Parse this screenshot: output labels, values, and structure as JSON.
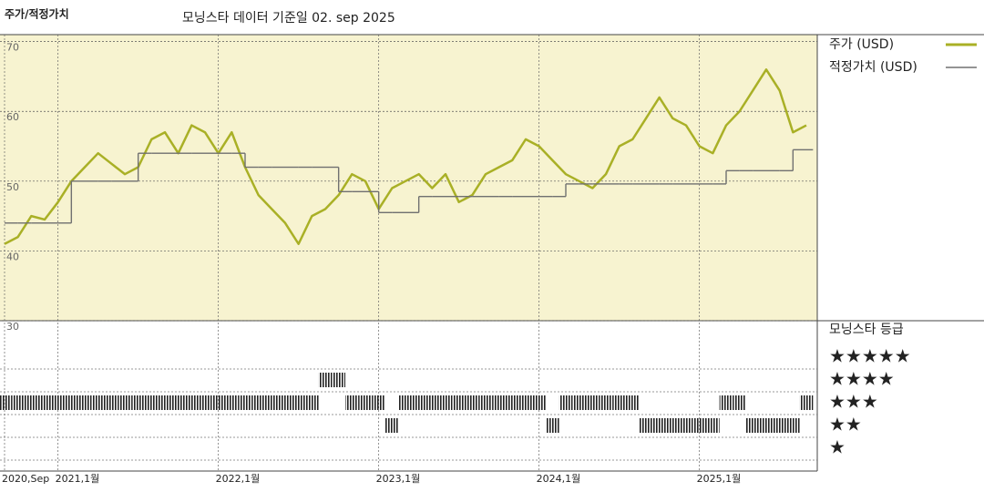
{
  "chart_data": {
    "type": "line",
    "title": "주가/적정가치",
    "subtitle": "모닝스타 데이터 기준일 02. sep 2025",
    "x": [
      "2020-09",
      "2020-10",
      "2020-11",
      "2020-12",
      "2021-01",
      "2021-02",
      "2021-03",
      "2021-04",
      "2021-05",
      "2021-06",
      "2021-07",
      "2021-08",
      "2021-09",
      "2021-10",
      "2021-11",
      "2021-12",
      "2022-01",
      "2022-02",
      "2022-03",
      "2022-04",
      "2022-05",
      "2022-06",
      "2022-07",
      "2022-08",
      "2022-09",
      "2022-10",
      "2022-11",
      "2022-12",
      "2023-01",
      "2023-02",
      "2023-03",
      "2023-04",
      "2023-05",
      "2023-06",
      "2023-07",
      "2023-08",
      "2023-09",
      "2023-10",
      "2023-11",
      "2023-12",
      "2024-01",
      "2024-02",
      "2024-03",
      "2024-04",
      "2024-05",
      "2024-06",
      "2024-07",
      "2024-08",
      "2024-09",
      "2024-10",
      "2024-11",
      "2024-12",
      "2025-01",
      "2025-02",
      "2025-03",
      "2025-04",
      "2025-05",
      "2025-06",
      "2025-07",
      "2025-08",
      "2025-09"
    ],
    "xlim": [
      "2020-09",
      "2025-09"
    ],
    "xticks": [
      {
        "value": "2020-09",
        "label": "2020,Sep"
      },
      {
        "value": "2021-01",
        "label": "2021,1월"
      },
      {
        "value": "2022-01",
        "label": "2022,1월"
      },
      {
        "value": "2023-01",
        "label": "2023,1월"
      },
      {
        "value": "2024-01",
        "label": "2024,1월"
      },
      {
        "value": "2025-01",
        "label": "2025,1월"
      }
    ],
    "ylim": [
      30,
      71
    ],
    "yticks": [
      30,
      40,
      50,
      60,
      70
    ],
    "grid": true,
    "background": "#f7f3d0",
    "series": [
      {
        "name": "주가 (USD)",
        "color": "#a9b026",
        "step": false,
        "values": [
          41,
          42,
          45,
          44.5,
          47,
          50,
          52,
          54,
          52.5,
          51,
          52,
          56,
          57,
          54,
          58,
          57,
          54,
          57,
          52,
          48,
          46,
          44,
          41,
          45,
          46,
          48,
          51,
          50,
          46,
          49,
          50,
          51,
          49,
          51,
          47,
          48,
          51,
          52,
          53,
          56,
          55,
          53,
          51,
          50,
          49,
          51,
          55,
          56,
          59,
          62,
          59,
          58,
          55,
          54,
          58,
          60,
          63,
          66,
          63,
          57,
          58
        ]
      },
      {
        "name": "적정가치 (USD)",
        "color": "#707070",
        "step": true,
        "values": [
          44,
          44,
          44,
          44,
          44,
          50,
          50,
          50,
          50,
          50,
          54,
          54,
          54,
          54,
          54,
          54,
          54,
          54,
          52,
          52,
          52,
          52,
          52,
          52,
          52,
          48.5,
          48.5,
          48.5,
          45.5,
          45.5,
          45.5,
          47.8,
          47.8,
          47.8,
          47.8,
          47.8,
          47.8,
          47.8,
          47.8,
          47.8,
          47.8,
          47.8,
          49.6,
          49.6,
          49.6,
          49.6,
          49.6,
          49.6,
          49.6,
          49.6,
          49.6,
          49.6,
          49.6,
          49.6,
          51.5,
          51.5,
          51.5,
          51.5,
          51.5,
          54.5,
          54.5
        ]
      }
    ],
    "ratings": {
      "name": "모닝스타 등급",
      "levels": [
        {
          "value": 5,
          "label": "★★★★★"
        },
        {
          "value": 4,
          "label": "★★★★"
        },
        {
          "value": 3,
          "label": "★★★"
        },
        {
          "value": 2,
          "label": "★★"
        },
        {
          "value": 1,
          "label": "★"
        }
      ],
      "values": [
        3,
        3,
        3,
        3,
        3,
        3,
        3,
        3,
        3,
        3,
        3,
        3,
        3,
        3,
        3,
        3,
        3,
        3,
        3,
        3,
        3,
        3,
        3,
        3,
        4,
        4,
        3,
        3,
        3,
        2,
        3,
        3,
        3,
        3,
        3,
        3,
        3,
        3,
        3,
        3,
        3,
        2,
        3,
        3,
        3,
        3,
        3,
        3,
        2,
        2,
        2,
        2,
        2,
        2,
        3,
        3,
        2,
        2,
        2,
        2,
        3
      ]
    }
  }
}
